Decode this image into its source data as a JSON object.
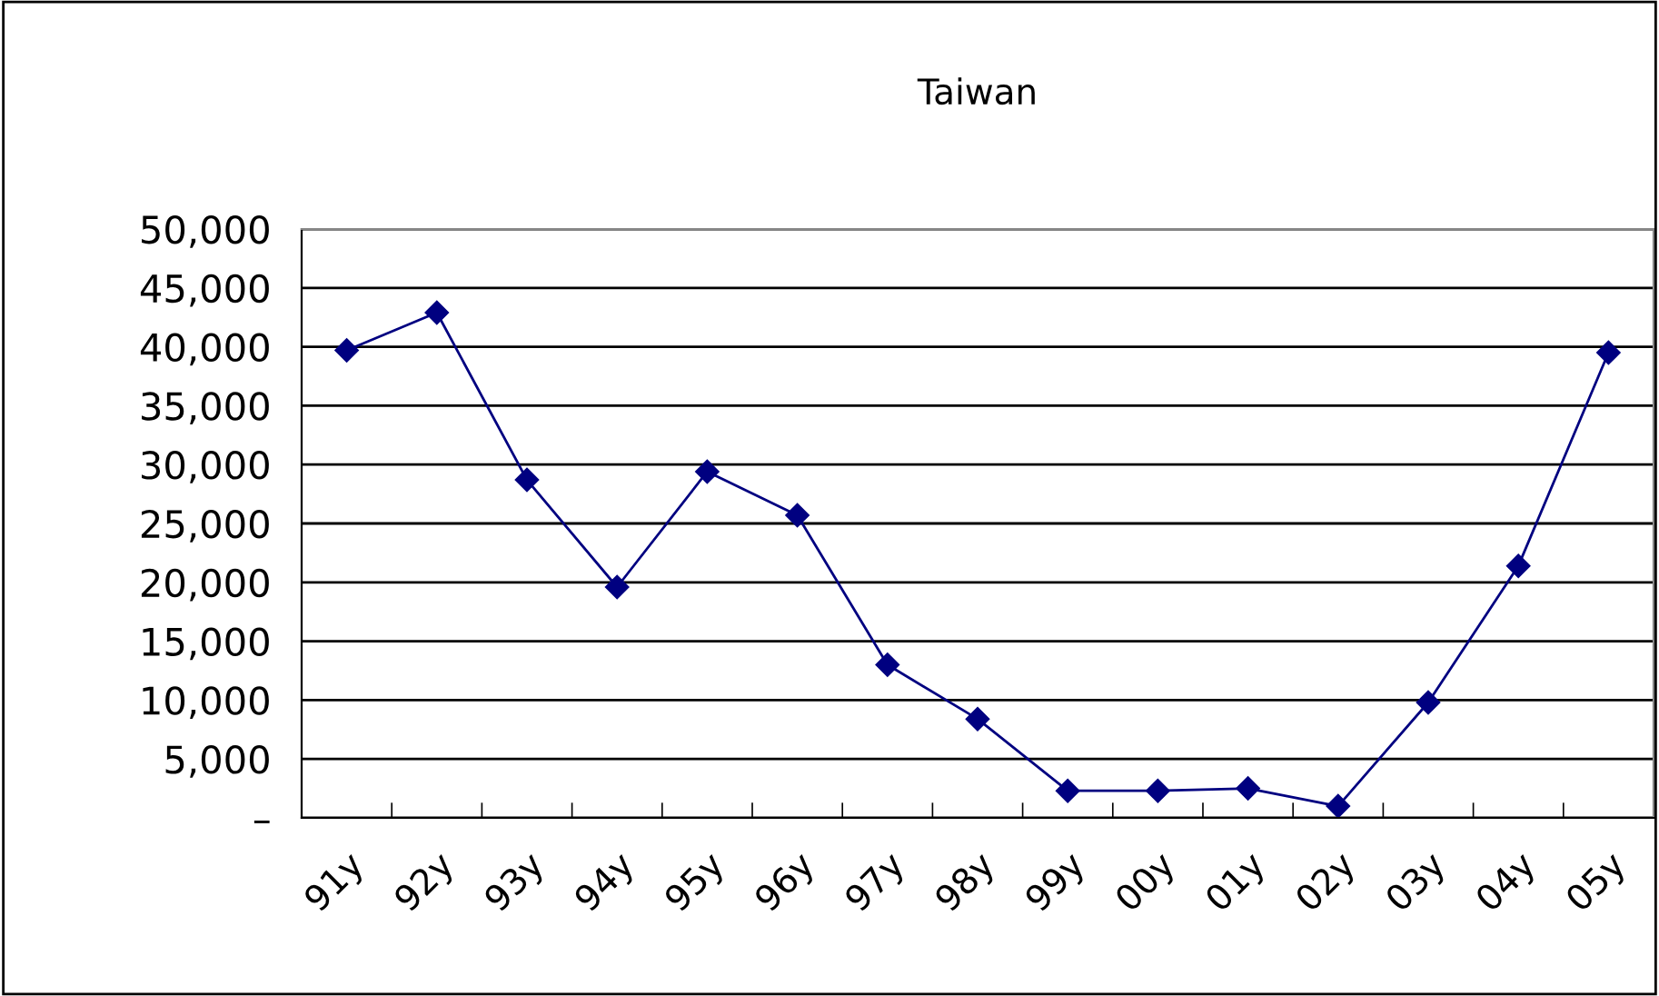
{
  "chart_data": {
    "type": "line",
    "title": "Taiwan",
    "categories": [
      "91y",
      "92y",
      "93y",
      "94y",
      "95y",
      "96y",
      "97y",
      "98y",
      "99y",
      "00y",
      "01y",
      "02y",
      "03y",
      "04y",
      "05y"
    ],
    "series": [
      {
        "color": "#000080",
        "values": [
          39700,
          42900,
          28700,
          19600,
          29400,
          25700,
          13000,
          8400,
          2300,
          2300,
          2500,
          1000,
          9800,
          21400,
          39500
        ]
      }
    ],
    "ylim": [
      0,
      50000
    ],
    "yticks": [
      {
        "value": 0,
        "label": "–"
      },
      {
        "value": 5000,
        "label": "5,000"
      },
      {
        "value": 10000,
        "label": "10,000"
      },
      {
        "value": 15000,
        "label": "15,000"
      },
      {
        "value": 20000,
        "label": "20,000"
      },
      {
        "value": 25000,
        "label": "25,000"
      },
      {
        "value": 30000,
        "label": "30,000"
      },
      {
        "value": 35000,
        "label": "35,000"
      },
      {
        "value": 40000,
        "label": "40,000"
      },
      {
        "value": 45000,
        "label": "45,000"
      },
      {
        "value": 50000,
        "label": "50,000"
      }
    ],
    "grid": "y",
    "marker": "diamond",
    "line_style": "solid",
    "legend": false
  }
}
